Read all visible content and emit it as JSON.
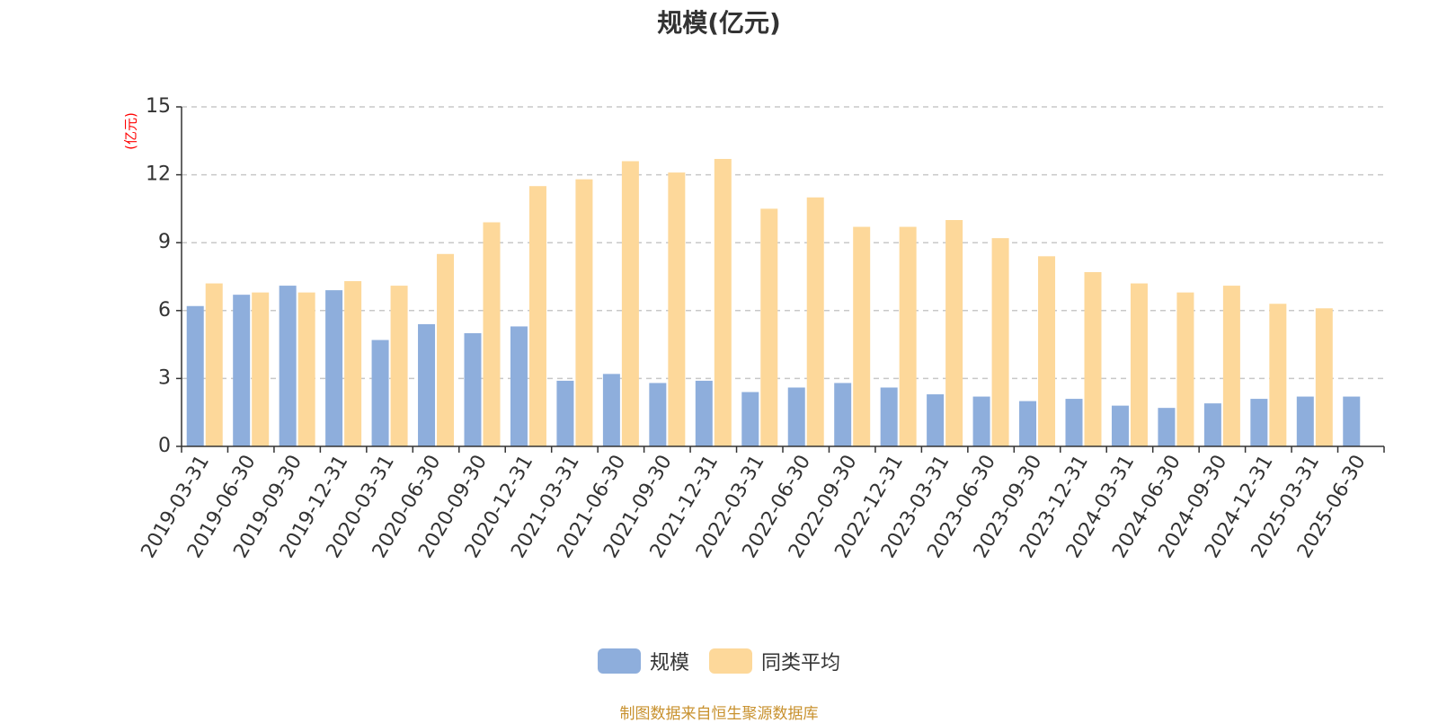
{
  "chart_data": {
    "type": "bar",
    "title": "规模(亿元)",
    "ylabel": "(亿元)",
    "xlabel": "",
    "ylim": [
      0,
      15
    ],
    "yticks": [
      0,
      3,
      6,
      9,
      12,
      15
    ],
    "grid": true,
    "legend_position": "bottom",
    "categories": [
      "2019-03-31",
      "2019-06-30",
      "2019-09-30",
      "2019-12-31",
      "2020-03-31",
      "2020-06-30",
      "2020-09-30",
      "2020-12-31",
      "2021-03-31",
      "2021-06-30",
      "2021-09-30",
      "2021-12-31",
      "2022-03-31",
      "2022-06-30",
      "2022-09-30",
      "2022-12-31",
      "2023-03-31",
      "2023-06-30",
      "2023-09-30",
      "2023-12-31",
      "2024-03-31",
      "2024-06-30",
      "2024-09-30",
      "2024-12-31",
      "2025-03-31",
      "2025-06-30"
    ],
    "series": [
      {
        "name": "规模",
        "color": "#8eaedc",
        "values": [
          6.2,
          6.7,
          7.1,
          6.9,
          4.7,
          5.4,
          5.0,
          5.3,
          2.9,
          3.2,
          2.8,
          2.9,
          2.4,
          2.6,
          2.8,
          2.6,
          2.3,
          2.2,
          2.0,
          2.1,
          1.8,
          1.7,
          1.9,
          2.1,
          2.2,
          2.2
        ]
      },
      {
        "name": "同类平均",
        "color": "#fdd89a",
        "values": [
          7.2,
          6.8,
          6.8,
          7.3,
          7.1,
          8.5,
          9.9,
          11.5,
          11.8,
          12.6,
          12.1,
          12.7,
          10.5,
          11.0,
          9.7,
          9.7,
          10.0,
          9.2,
          8.4,
          7.7,
          7.2,
          6.8,
          7.1,
          6.3,
          6.1,
          null
        ]
      }
    ]
  },
  "source_note": "制图数据来自恒生聚源数据库"
}
